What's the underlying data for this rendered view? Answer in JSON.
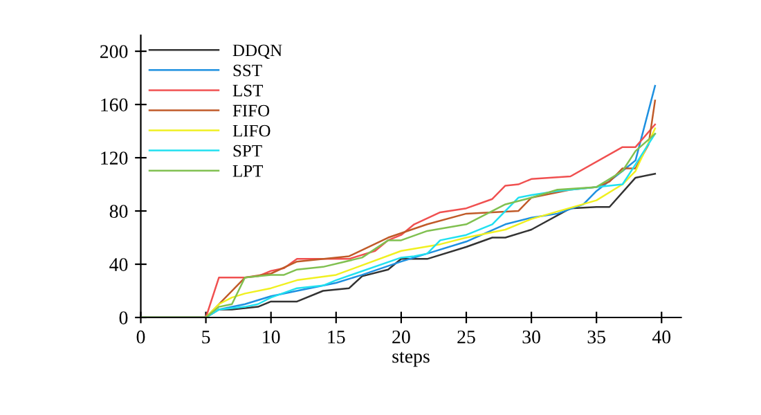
{
  "chart_data": {
    "type": "line",
    "xlabel": "steps",
    "xlim": [
      0,
      41.5
    ],
    "ylim": [
      0,
      212
    ],
    "xticks": [
      0,
      5,
      10,
      15,
      20,
      25,
      30,
      35,
      40
    ],
    "yticks": [
      0,
      40,
      80,
      120,
      160,
      200
    ],
    "grid": false,
    "legend": "top left",
    "marker": "none",
    "line_style": "solid",
    "series": [
      {
        "name": "DDQN",
        "color": "#333333",
        "x": [
          0,
          5,
          6,
          7,
          9,
          10,
          12,
          14,
          16,
          17,
          19,
          20,
          22,
          25,
          27,
          28,
          30,
          33,
          35,
          36,
          38,
          39.5
        ],
        "values": [
          0,
          0,
          6,
          6,
          8,
          12,
          12,
          20,
          22,
          31,
          36,
          44,
          44,
          53,
          60,
          60,
          66,
          82,
          83,
          83,
          105,
          108
        ]
      },
      {
        "name": "SST",
        "color": "#1e90e0",
        "x": [
          0,
          5,
          6,
          8,
          10,
          12,
          15,
          17,
          20,
          22,
          25,
          28,
          30,
          32,
          34,
          35,
          37,
          38,
          39.5
        ],
        "values": [
          0,
          0,
          6,
          10,
          16,
          20,
          26,
          32,
          42,
          48,
          57,
          70,
          75,
          78,
          85,
          95,
          110,
          118,
          174
        ]
      },
      {
        "name": "LST",
        "color": "#f05050",
        "x": [
          0,
          5,
          6,
          8,
          9,
          10,
          11,
          12,
          16,
          18,
          19,
          20,
          21,
          23,
          25,
          27,
          28,
          29,
          30,
          33,
          37,
          38,
          39.5
        ],
        "values": [
          0,
          0,
          30,
          30,
          31,
          35,
          37,
          44,
          44,
          50,
          58,
          62,
          70,
          79,
          82,
          89,
          99,
          100,
          104,
          106,
          128,
          128,
          145
        ]
      },
      {
        "name": "FIFO",
        "color": "#c05a28",
        "x": [
          0,
          5,
          7,
          8,
          10,
          12,
          16,
          19,
          22,
          25,
          29,
          30,
          33,
          35,
          36,
          37,
          38,
          39,
          39.5
        ],
        "values": [
          0,
          0,
          20,
          30,
          33,
          42,
          46,
          60,
          70,
          78,
          80,
          90,
          96,
          98,
          102,
          112,
          112,
          130,
          163
        ]
      },
      {
        "name": "LIFO",
        "color": "#f0f020",
        "x": [
          0,
          5,
          6,
          7,
          8,
          10,
          12,
          15,
          20,
          23,
          25,
          28,
          30,
          35,
          37,
          38,
          39.5
        ],
        "values": [
          0,
          0,
          10,
          15,
          18,
          22,
          28,
          32,
          50,
          55,
          60,
          66,
          74,
          88,
          100,
          110,
          142
        ]
      },
      {
        "name": "SPT",
        "color": "#20e0f0",
        "x": [
          0,
          5,
          6,
          8,
          9,
          10,
          12,
          14,
          15,
          20,
          21,
          22,
          23,
          25,
          27,
          29,
          30,
          32,
          35,
          37,
          38,
          39.5
        ],
        "values": [
          0,
          0,
          6,
          8,
          10,
          15,
          22,
          24,
          28,
          45,
          46,
          48,
          58,
          62,
          70,
          90,
          92,
          95,
          98,
          100,
          115,
          138
        ]
      },
      {
        "name": "LPT",
        "color": "#80c050",
        "x": [
          0,
          5,
          6,
          7,
          8,
          10,
          11,
          12,
          14,
          17,
          19,
          20,
          22,
          25,
          28,
          30,
          32,
          35,
          37,
          38,
          39.5
        ],
        "values": [
          0,
          0,
          8,
          10,
          30,
          32,
          32,
          36,
          38,
          45,
          58,
          58,
          65,
          70,
          85,
          90,
          96,
          98,
          110,
          125,
          138
        ]
      }
    ]
  }
}
